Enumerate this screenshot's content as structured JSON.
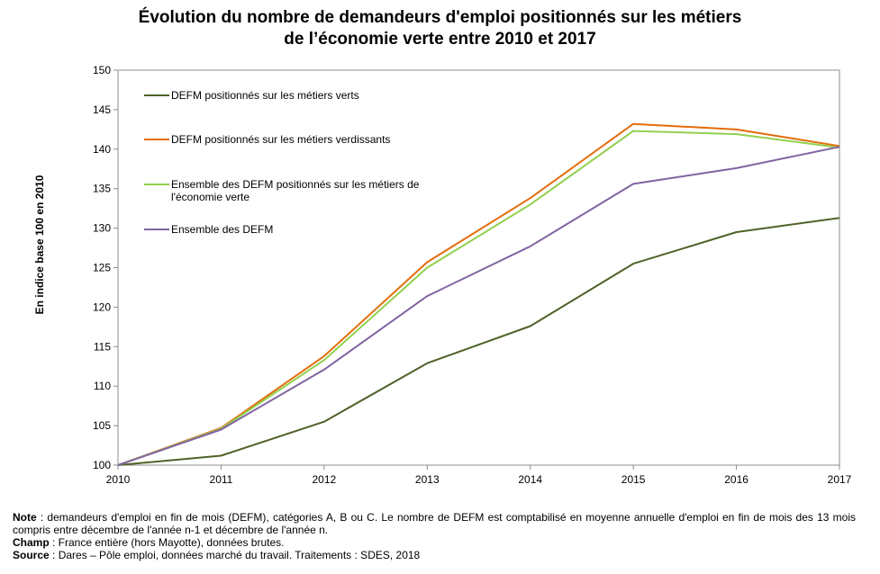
{
  "title": {
    "line1": "Évolution du nombre de demandeurs d'emploi positionnés sur les métiers",
    "line2": "de l’économie verte entre 2010 et 2017"
  },
  "notes": {
    "note_label": "Note",
    "note_text": " : demandeurs d'emploi en fin de mois (DEFM), catégories A, B ou C. Le nombre de DEFM est comptabilisé en moyenne annuelle d'emploi en fin de mois des 13 mois compris entre décembre de l'année n-1 et décembre de l'année n.",
    "champ_label": "Champ",
    "champ_text": " : France entière (hors Mayotte), données brutes.",
    "source_label": "Source",
    "source_text": " : Dares – Pôle emploi, données marché du travail. Traitements : SDES, 2018"
  },
  "chart_data": {
    "type": "line",
    "title": "Évolution du nombre de demandeurs d'emploi positionnés sur les métiers de l’économie verte entre 2010 et 2017",
    "xlabel": "",
    "ylabel": "En indice base 100 en 2010",
    "x": [
      "2010",
      "2011",
      "2012",
      "2013",
      "2014",
      "2015",
      "2016",
      "2017"
    ],
    "ylim": [
      100,
      150
    ],
    "yticks": [
      100,
      105,
      110,
      115,
      120,
      125,
      130,
      135,
      140,
      145,
      150
    ],
    "grid": false,
    "legend_position": "top-left",
    "series": [
      {
        "name": "DEFM positionnés sur les métiers verts",
        "color": "#4f6228",
        "values": [
          100,
          101.2,
          105.5,
          112.9,
          117.6,
          125.5,
          129.5,
          131.3
        ]
      },
      {
        "name": "DEFM positionnés sur les métiers verdissants",
        "color": "#e36c0a",
        "values": [
          100,
          104.7,
          113.8,
          125.7,
          133.8,
          143.2,
          142.5,
          140.4
        ]
      },
      {
        "name": "Ensemble des DEFM positionnés sur les métiers de l'économie verte",
        "color": "#92d050",
        "values": [
          100,
          104.6,
          113.3,
          125.0,
          133.0,
          142.3,
          141.9,
          140.2
        ]
      },
      {
        "name": "Ensemble des DEFM",
        "color": "#8064a2",
        "values": [
          100,
          104.5,
          112.1,
          121.4,
          127.7,
          135.6,
          137.6,
          140.3
        ]
      }
    ]
  }
}
